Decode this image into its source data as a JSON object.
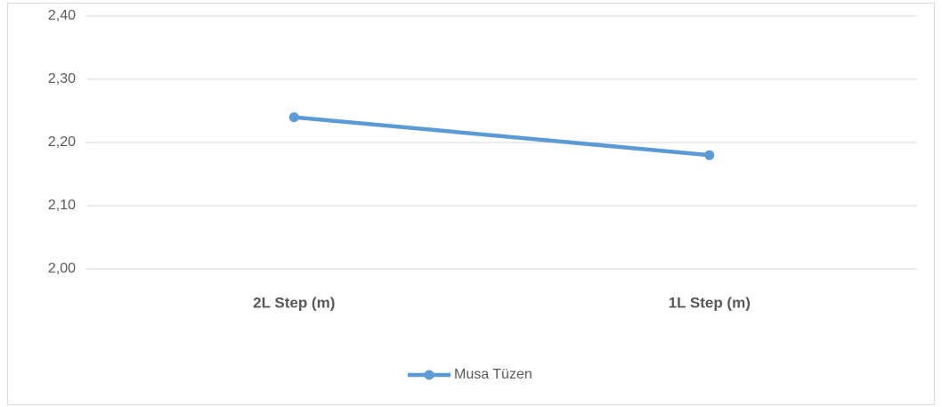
{
  "chart_data": {
    "type": "line",
    "categories": [
      "2L Step (m)",
      "1L Step (m)"
    ],
    "series": [
      {
        "name": "Musa Tüzen",
        "color": "#5b9bd5",
        "values": [
          2.24,
          2.18
        ]
      }
    ],
    "ylim": [
      2,
      2.4
    ],
    "yticks": [
      {
        "value": 2,
        "label": "2,00"
      },
      {
        "value": 2.1,
        "label": "2,10"
      },
      {
        "value": 2.2,
        "label": "2,20"
      },
      {
        "value": 2.3,
        "label": "2,30"
      },
      {
        "value": 2.4,
        "label": "2,40"
      }
    ],
    "grid": true,
    "legend": "bottom"
  }
}
